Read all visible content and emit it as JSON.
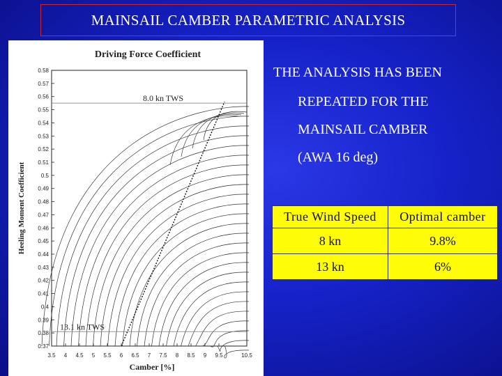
{
  "slide": {
    "title": "MAINSAIL CAMBER PARAMETRIC ANALYSIS",
    "description": [
      "THE ANALYSIS HAS BEEN",
      "REPEATED FOR THE",
      "MAINSAIL CAMBER",
      "(AWA 16 deg)"
    ]
  },
  "table": {
    "headers": [
      "True Wind Speed",
      "Optimal camber"
    ],
    "rows": [
      [
        "8 kn",
        "9.8%"
      ],
      [
        "13 kn",
        "6%"
      ]
    ]
  },
  "chart_data": {
    "type": "contour",
    "title": "Driving Force Coefficient",
    "xlabel": "Camber [%]",
    "ylabel": "Heeling Moment Coefficient",
    "xlim": [
      3.5,
      10.5
    ],
    "ylim": [
      0.37,
      0.58
    ],
    "xticks": [
      "3.5",
      "4",
      "4.5",
      "5",
      "5.5",
      "6",
      "6.5",
      "7",
      "7.5",
      "8",
      "8.5",
      "9",
      "9.5",
      "10.5"
    ],
    "yticks": [
      "0.58",
      "0.57",
      "0.56",
      "0.55",
      "0.54",
      "0.53",
      "0.52",
      "0.51",
      "0.5",
      "0.49",
      "0.48",
      "0.47",
      "0.46",
      "0.45",
      "0.44",
      "0.43",
      "0.42",
      "0.41",
      "0.4",
      "0.39",
      "0.38",
      "0.37"
    ],
    "annotations": [
      {
        "text": "8.0 kn TWS",
        "x": 7.5,
        "y": 0.555
      },
      {
        "text": "13.1 kn TWS",
        "x": 4.6,
        "y": 0.381
      }
    ],
    "optimum_line": {
      "x": [
        6.0,
        9.7
      ],
      "y": [
        0.37,
        0.556
      ]
    },
    "reference_lines": [
      {
        "orientation": "horizontal",
        "y": 0.555
      },
      {
        "orientation": "horizontal",
        "y": 0.381
      }
    ],
    "grid": false,
    "legend": "none"
  }
}
